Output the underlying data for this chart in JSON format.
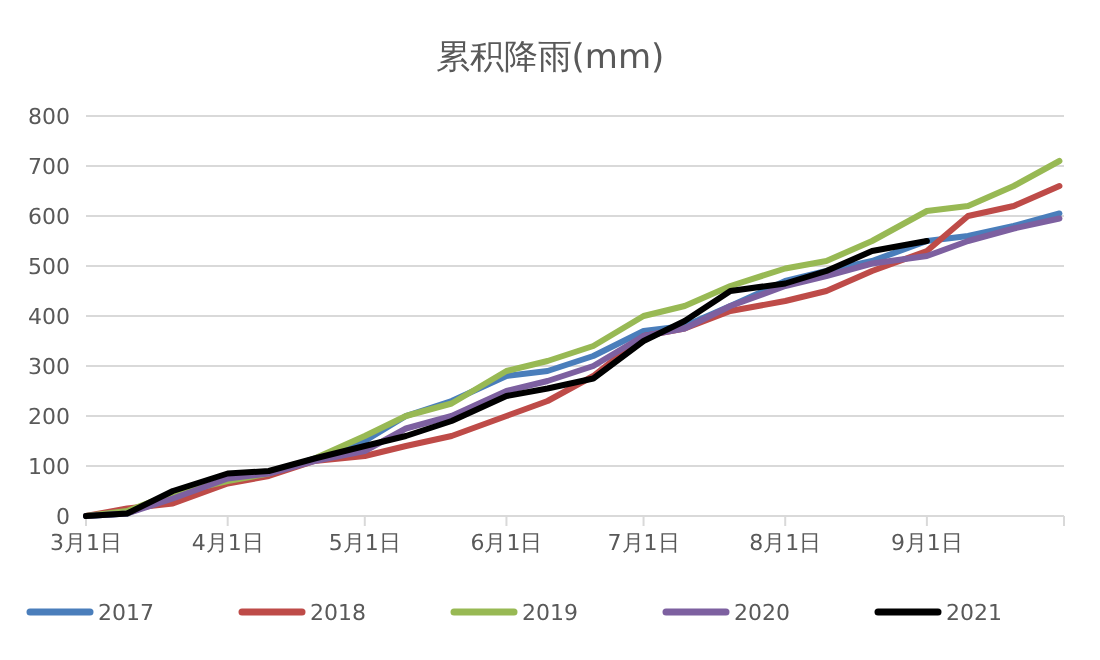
{
  "chart_data": {
    "type": "line",
    "title": "累积降雨(mm)",
    "grid": "y",
    "legend": "bottom",
    "marker": "none",
    "line_style": "solid",
    "xlim": [
      "--03-01",
      "--10-01"
    ],
    "xticks": [
      {
        "value": "--03-01",
        "label": "3月1日"
      },
      {
        "value": "--04-01",
        "label": "4月1日"
      },
      {
        "value": "--05-01",
        "label": "5月1日"
      },
      {
        "value": "--06-01",
        "label": "6月1日"
      },
      {
        "value": "--07-01",
        "label": "7月1日"
      },
      {
        "value": "--08-01",
        "label": "8月1日"
      },
      {
        "value": "--09-01",
        "label": "9月1日"
      },
      {
        "value": "--10-01",
        "label": null
      }
    ],
    "ylim": [
      0,
      800
    ],
    "yticks": [
      0,
      100,
      200,
      300,
      400,
      500,
      600,
      700,
      800
    ],
    "x": [
      "--03-01",
      "--03-10",
      "--03-20",
      "--04-01",
      "--04-10",
      "--04-20",
      "--05-01",
      "--05-10",
      "--05-20",
      "--06-01",
      "--06-10",
      "--06-20",
      "--07-01",
      "--07-10",
      "--07-20",
      "--08-01",
      "--08-10",
      "--08-20",
      "--09-01",
      "--09-10",
      "--09-20",
      "--09-30"
    ],
    "series": [
      {
        "name": "2017",
        "color": "#4a7ebb",
        "values": [
          0,
          5,
          40,
          70,
          85,
          115,
          150,
          200,
          230,
          280,
          290,
          320,
          370,
          380,
          420,
          470,
          490,
          510,
          550,
          560,
          580,
          605
        ]
      },
      {
        "name": "2018",
        "color": "#be4b48",
        "values": [
          0,
          15,
          25,
          65,
          80,
          110,
          120,
          140,
          160,
          200,
          230,
          280,
          360,
          375,
          410,
          430,
          450,
          490,
          530,
          600,
          620,
          660
        ]
      },
      {
        "name": "2019",
        "color": "#98b954",
        "values": [
          0,
          10,
          45,
          70,
          85,
          115,
          160,
          200,
          225,
          290,
          310,
          340,
          400,
          420,
          460,
          495,
          510,
          550,
          610,
          620,
          660,
          710
        ]
      },
      {
        "name": "2020",
        "color": "#7d60a0",
        "values": [
          0,
          5,
          35,
          75,
          85,
          110,
          130,
          175,
          200,
          250,
          270,
          300,
          360,
          375,
          420,
          460,
          480,
          505,
          520,
          550,
          575,
          595
        ]
      },
      {
        "name": "2021",
        "color": "#000000",
        "values": [
          0,
          5,
          50,
          85,
          90,
          115,
          140,
          160,
          190,
          240,
          255,
          275,
          350,
          390,
          450,
          465,
          490,
          530,
          550,
          null,
          null,
          null
        ]
      }
    ]
  }
}
